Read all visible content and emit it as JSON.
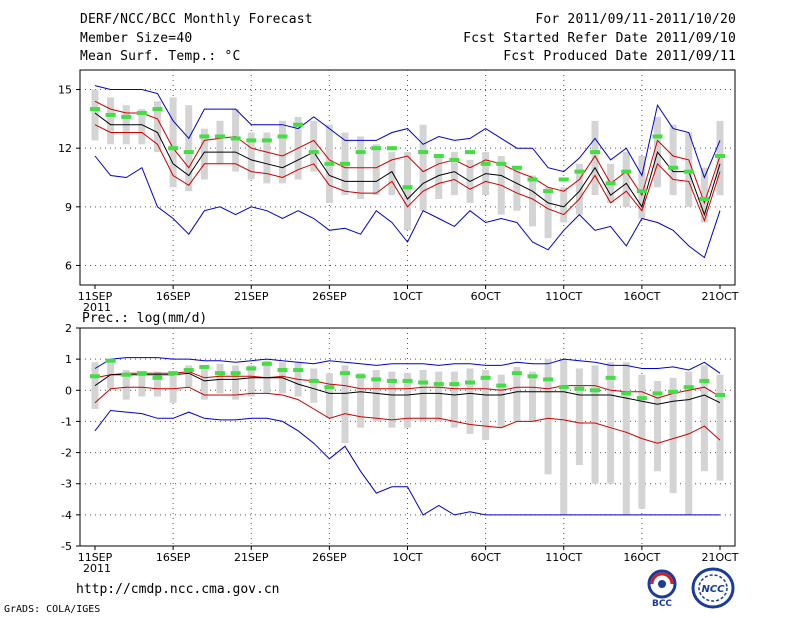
{
  "header": {
    "title": "DERF/NCC/BCC Monthly Forecast",
    "member": "Member Size=40",
    "variable": "Mean Surf. Temp.: °C",
    "period": "For 2011/09/11-2011/10/20",
    "started": "Fcst Started Refer Date 2011/09/10",
    "produced": "Fcst Produced Date 2011/09/11"
  },
  "footer": {
    "url": "http://cmdp.ncc.cma.gov.cn",
    "grads": "GrADS: COLA/IGES",
    "logo1_text": "BCC",
    "logo2_text": "NCC"
  },
  "colors": {
    "box": "#d4d4d4",
    "median": "#44dd44",
    "mean": "#000000",
    "spread": "#cc0000",
    "range": "#0000cc"
  },
  "chart_data": [
    {
      "type": "box",
      "title": "Mean Surf. Temp.: °C",
      "ylim": [
        5,
        16
      ],
      "yticks": [
        6,
        9,
        12,
        15
      ],
      "xticks": [
        "11SEP",
        "16SEP",
        "21SEP",
        "26SEP",
        "1OCT",
        "6OCT",
        "11OCT",
        "16OCT",
        "21OCT"
      ],
      "xtick_sub": "2011",
      "days": 40,
      "series": {
        "max": [
          15.2,
          15,
          15,
          15,
          14.8,
          13.4,
          12.5,
          14,
          14,
          14,
          13.2,
          13.2,
          13.2,
          13,
          13.6,
          13,
          12.4,
          12.4,
          12.4,
          12.8,
          13,
          12.2,
          12.6,
          12.4,
          12.5,
          13,
          12.5,
          12,
          12,
          11,
          10.8,
          11.5,
          12.5,
          11.4,
          12,
          10.6,
          14.2,
          13,
          12.8,
          10.5,
          12.4
        ],
        "mean_plus": [
          14.4,
          14,
          13.8,
          13.8,
          13.5,
          12,
          11,
          12.4,
          12.5,
          12.6,
          12,
          11.8,
          11.6,
          12,
          12.4,
          11.4,
          11,
          11,
          11,
          11.4,
          11.6,
          10.8,
          11.2,
          11.4,
          11,
          11.4,
          11.2,
          10.8,
          10.5,
          10,
          9.8,
          10.4,
          11.6,
          10.2,
          10.8,
          9.6,
          12.4,
          11.6,
          11.4,
          9.2,
          11.6
        ],
        "mean": [
          13.8,
          13.2,
          13.2,
          13.2,
          12.8,
          11.2,
          10.6,
          11.8,
          11.8,
          11.8,
          11.4,
          11.2,
          11,
          11.4,
          11.8,
          10.6,
          10.3,
          10.3,
          10.3,
          10.8,
          9.4,
          10.2,
          10.6,
          10.8,
          10.3,
          10.7,
          10.6,
          10.2,
          9.8,
          9.2,
          9.0,
          9.8,
          11.0,
          9.6,
          10.2,
          9.0,
          11.8,
          10.8,
          10.8,
          8.6,
          11.2
        ],
        "mean_minus": [
          13.2,
          12.8,
          12.8,
          12.8,
          12.2,
          10.6,
          10.1,
          11.2,
          11.2,
          11.2,
          10.8,
          10.7,
          10.5,
          10.9,
          11.2,
          10.1,
          9.8,
          9.7,
          9.7,
          10.3,
          9.0,
          9.8,
          10.2,
          10.4,
          9.9,
          10.3,
          10.1,
          9.7,
          9.4,
          8.9,
          8.6,
          9.4,
          10.6,
          9.2,
          9.8,
          8.8,
          11.2,
          10.4,
          10.3,
          8.3,
          10.8
        ],
        "min": [
          11.6,
          10.6,
          10.5,
          11,
          9,
          8.4,
          7.6,
          8.8,
          9,
          8.6,
          9,
          8.8,
          8.4,
          8.8,
          8.4,
          7.8,
          7.9,
          7.6,
          8.8,
          8.2,
          7.2,
          8.8,
          8.4,
          8,
          8.8,
          8.2,
          8.4,
          8.2,
          7.2,
          6.8,
          7.8,
          8.6,
          7.8,
          8,
          7,
          8.4,
          8.2,
          7.8,
          7,
          6.4,
          8.8
        ],
        "box_top": [
          15.0,
          14.6,
          14.2,
          14.0,
          14.4,
          14.6,
          14.2,
          13.0,
          13.4,
          14.0,
          12.8,
          12.8,
          13.4,
          13.6,
          13.4,
          13.2,
          12.8,
          12.6,
          12.2,
          11.8,
          11.8,
          13.2,
          11.6,
          11.8,
          11.4,
          11.8,
          11.6,
          11.0,
          10.6,
          10.0,
          10.0,
          11.2,
          13.4,
          11.2,
          11.8,
          11.6,
          13.6,
          13.2,
          12.8,
          11.0,
          13.4
        ],
        "box_bot": [
          12.4,
          12.2,
          12.2,
          12.2,
          11.8,
          10.0,
          9.8,
          10.4,
          11.2,
          10.8,
          10.4,
          10.2,
          10.2,
          10.4,
          10.8,
          9.2,
          9.6,
          9.4,
          9.6,
          9.6,
          7.8,
          8.8,
          9.4,
          9.6,
          9.2,
          9.6,
          8.6,
          8.8,
          8.0,
          7.4,
          8.2,
          8.6,
          9.6,
          9.2,
          9.0,
          8.4,
          10.0,
          9.6,
          9.0,
          8.2,
          9.6
        ],
        "median": [
          14.0,
          13.7,
          13.6,
          13.8,
          14.0,
          12.0,
          11.8,
          12.6,
          12.6,
          12.5,
          12.4,
          12.4,
          12.6,
          13.2,
          11.8,
          11.2,
          11.2,
          11.8,
          12.0,
          12.0,
          10.0,
          11.8,
          11.6,
          11.4,
          11.8,
          11.2,
          11.2,
          11.0,
          10.4,
          9.8,
          10.4,
          10.8,
          11.8,
          10.2,
          10.8,
          9.8,
          12.6,
          11.0,
          10.8,
          9.4,
          11.6
        ]
      }
    },
    {
      "type": "box",
      "title": "Prec.: log(mm/d)",
      "ylim": [
        -5,
        2
      ],
      "yticks": [
        -5,
        -4,
        -3,
        -2,
        -1,
        0,
        1,
        2
      ],
      "xticks": [
        "11SEP",
        "16SEP",
        "21SEP",
        "26SEP",
        "1OCT",
        "6OCT",
        "11OCT",
        "16OCT",
        "21OCT"
      ],
      "xtick_sub": "2011",
      "days": 40,
      "series": {
        "max": [
          0.7,
          1.0,
          1.05,
          1.05,
          1.05,
          1.0,
          1.0,
          0.95,
          0.95,
          0.9,
          0.95,
          1.0,
          0.95,
          0.9,
          0.85,
          0.95,
          0.9,
          0.85,
          0.8,
          0.85,
          0.85,
          0.85,
          0.8,
          0.85,
          0.85,
          0.8,
          0.8,
          0.9,
          0.85,
          0.85,
          1.0,
          0.95,
          0.9,
          0.8,
          0.8,
          0.7,
          0.7,
          0.75,
          0.65,
          0.9,
          0.55
        ],
        "mean_plus": [
          0.4,
          0.5,
          0.55,
          0.55,
          0.55,
          0.55,
          0.6,
          0.4,
          0.45,
          0.45,
          0.45,
          0.4,
          0.45,
          0.35,
          0.3,
          0.2,
          0.15,
          0.05,
          0.05,
          0.05,
          0.05,
          0.1,
          0.1,
          0.05,
          0.05,
          0.05,
          0.0,
          0.1,
          0.1,
          0.05,
          0.15,
          0.15,
          0.15,
          0.0,
          -0.05,
          -0.05,
          -0.25,
          -0.1,
          0.0,
          0.1,
          -0.2
        ],
        "mean": [
          0.15,
          0.5,
          0.5,
          0.5,
          0.5,
          0.5,
          0.55,
          0.3,
          0.35,
          0.35,
          0.4,
          0.4,
          0.4,
          0.2,
          0.05,
          -0.1,
          -0.1,
          -0.05,
          -0.1,
          -0.15,
          -0.15,
          -0.1,
          -0.1,
          -0.15,
          -0.1,
          -0.15,
          -0.15,
          -0.05,
          -0.05,
          -0.05,
          -0.05,
          -0.15,
          -0.15,
          -0.15,
          -0.25,
          -0.35,
          -0.45,
          -0.35,
          -0.3,
          -0.15,
          -0.4
        ],
        "mean_minus": [
          -0.4,
          0.05,
          0.1,
          0.1,
          0.05,
          0.05,
          0.1,
          -0.15,
          -0.15,
          -0.15,
          -0.1,
          -0.1,
          -0.15,
          -0.3,
          -0.6,
          -0.9,
          -0.75,
          -0.85,
          -0.9,
          -0.95,
          -0.9,
          -0.9,
          -0.9,
          -1.0,
          -1.1,
          -1.15,
          -1.2,
          -1.0,
          -1.0,
          -0.9,
          -0.95,
          -1.05,
          -1.05,
          -1.2,
          -1.35,
          -1.55,
          -1.7,
          -1.55,
          -1.4,
          -1.15,
          -1.6
        ],
        "min": [
          -1.3,
          -0.65,
          -0.7,
          -0.75,
          -0.9,
          -0.9,
          -0.7,
          -0.9,
          -0.95,
          -0.95,
          -0.9,
          -0.9,
          -1.0,
          -1.3,
          -1.7,
          -2.2,
          -1.8,
          -2.6,
          -3.3,
          -3.1,
          -3.1,
          -4.0,
          -3.7,
          -4.0,
          -3.9,
          -4.0,
          -4.0,
          -4.0,
          -4.0,
          -4.0,
          -4.0,
          -4.0,
          -4.0,
          -4.0,
          -4.0,
          -4.0,
          -4.0,
          -4.0,
          -4.0,
          -4.0,
          -4.0
        ],
        "box_top": [
          0.9,
          0.95,
          0.65,
          0.6,
          0.6,
          0.5,
          0.8,
          0.75,
          0.85,
          0.8,
          0.8,
          0.95,
          0.9,
          0.9,
          0.7,
          0.55,
          0.8,
          0.55,
          0.65,
          0.6,
          0.55,
          0.65,
          0.6,
          0.6,
          0.7,
          0.65,
          0.5,
          0.75,
          0.6,
          1.0,
          1.0,
          0.7,
          0.8,
          0.9,
          0.9,
          0.5,
          0.3,
          0.4,
          0.6,
          0.8,
          0.5
        ],
        "box_bot": [
          -0.6,
          0.05,
          -0.3,
          -0.2,
          -0.2,
          -0.4,
          0.1,
          -0.3,
          -0.1,
          -0.3,
          -0.2,
          -0.1,
          -0.1,
          -0.2,
          -0.4,
          -0.9,
          -1.7,
          -1.2,
          -1.0,
          -1.2,
          -1.2,
          -1.0,
          -1.0,
          -1.2,
          -1.4,
          -1.6,
          -1.2,
          -1.0,
          -1.0,
          -2.7,
          -4.0,
          -2.4,
          -3.0,
          -3.0,
          -4.0,
          -3.8,
          -2.6,
          -3.3,
          -4.0,
          -2.6,
          -2.9
        ],
        "median": [
          0.45,
          0.95,
          0.5,
          0.55,
          0.4,
          0.55,
          0.65,
          0.75,
          0.55,
          0.55,
          0.7,
          0.85,
          0.65,
          0.65,
          0.3,
          0.1,
          0.55,
          0.45,
          0.35,
          0.3,
          0.3,
          0.25,
          0.2,
          0.2,
          0.25,
          0.4,
          0.15,
          0.55,
          0.45,
          0.35,
          0.1,
          0.05,
          0.0,
          0.4,
          -0.1,
          -0.25,
          -0.1,
          -0.05,
          0.1,
          0.3,
          -0.15
        ]
      }
    }
  ]
}
